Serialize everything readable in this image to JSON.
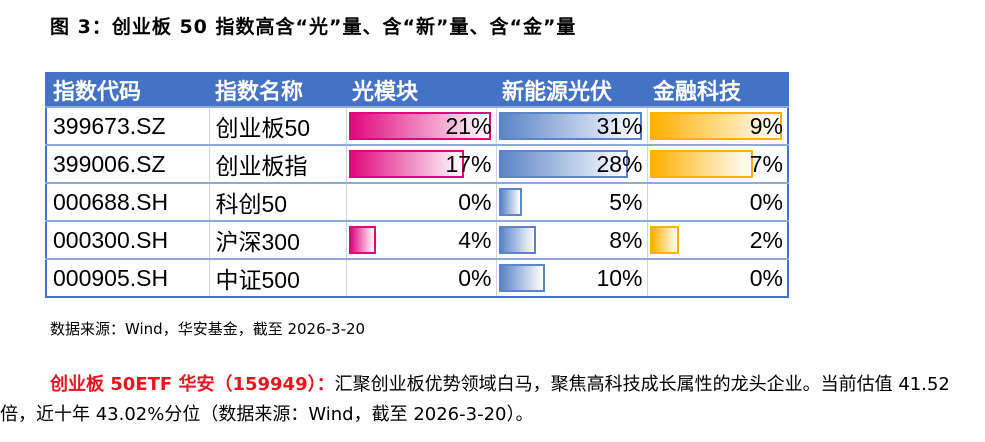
{
  "title": "图 3：创业板 50 指数高含“光”量、含“新”量、含“金”量",
  "table": {
    "headers": [
      "指数代码",
      "指数名称",
      "光模块",
      "新能源光伏",
      "金融科技"
    ],
    "bar_colors": [
      "#e0087e",
      "#5b85c8",
      "#ffb000"
    ],
    "rows": [
      {
        "code": "399673.SZ",
        "name": "创业板50",
        "v": [
          "21%",
          "31%",
          "9%"
        ],
        "n": [
          21,
          31,
          9
        ]
      },
      {
        "code": "399006.SZ",
        "name": "创业板指",
        "v": [
          "17%",
          "28%",
          "7%"
        ],
        "n": [
          17,
          28,
          7
        ]
      },
      {
        "code": "000688.SH",
        "name": "科创50",
        "v": [
          "0%",
          "5%",
          "0%"
        ],
        "n": [
          0,
          5,
          0
        ]
      },
      {
        "code": "000300.SH",
        "name": "沪深300",
        "v": [
          "4%",
          "8%",
          "2%"
        ],
        "n": [
          4,
          8,
          2
        ]
      },
      {
        "code": "000905.SH",
        "name": "中证500",
        "v": [
          "0%",
          "10%",
          "0%"
        ],
        "n": [
          0,
          10,
          0
        ]
      }
    ]
  },
  "source": "数据来源：Wind，华安基金，截至 2026-3-20",
  "paragraph": {
    "highlight": "创业板 50ETF 华安（159949）：",
    "text": "汇聚创业板优势领域白马，聚焦高科技成长属性的龙头企业。当前估值 41.52 倍，近十年 43.02%分位（数据来源：Wind，截至 2026-3-20）。"
  }
}
